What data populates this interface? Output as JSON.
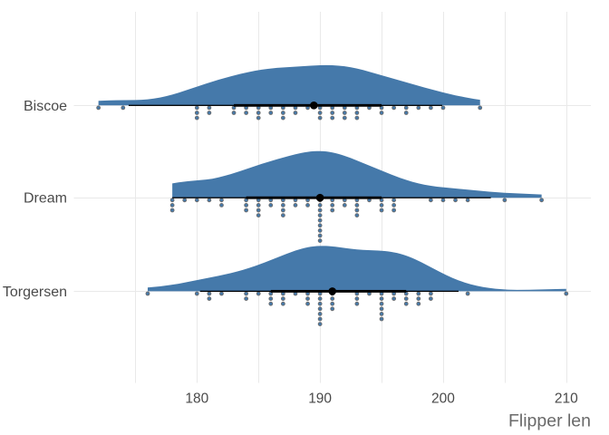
{
  "figure": {
    "xlabel": "Flipper len"
  },
  "chart_data": {
    "type": "raincloud",
    "orientation": "horizontal",
    "title": "",
    "xlabel": "Flipper len",
    "ylabel": "",
    "x_axis": {
      "range": [
        170,
        212
      ],
      "label_ticks": [
        180,
        190,
        200,
        210
      ],
      "gridlines": [
        175,
        180,
        185,
        190,
        195,
        200,
        205,
        210
      ]
    },
    "categories": [
      "Biscoe",
      "Dream",
      "Torgersen"
    ],
    "legend": "none",
    "grid": "on",
    "interval_widths": [
      0.66,
      0.95
    ],
    "groups": [
      {
        "name": "Biscoe",
        "n": 44,
        "median": 189.5,
        "q025": 174.45,
        "q17": 183.0,
        "q83": 195.0,
        "q975": 199.925,
        "values": {
          "172": 1,
          "174": 1,
          "180": 3,
          "181": 2,
          "183": 2,
          "184": 2,
          "185": 3,
          "186": 2,
          "187": 3,
          "188": 2,
          "189": 1,
          "190": 3,
          "191": 3,
          "192": 3,
          "193": 3,
          "194": 1,
          "195": 2,
          "196": 1,
          "197": 2,
          "198": 1,
          "199": 1,
          "200": 1,
          "203": 1
        },
        "density": [
          [
            172.0,
            0.0982
          ],
          [
            173.0,
            0.1081
          ],
          [
            175.0,
            0.1149
          ],
          [
            175.5,
            0.1205
          ],
          [
            176.0,
            0.1306
          ],
          [
            176.5,
            0.1465
          ],
          [
            177.0,
            0.1687
          ],
          [
            177.5,
            0.1973
          ],
          [
            178.0,
            0.232
          ],
          [
            178.5,
            0.2713
          ],
          [
            180.75,
            0.4681
          ],
          [
            181.75,
            0.5489
          ],
          [
            182.75,
            0.6223
          ],
          [
            183.5,
            0.6724
          ],
          [
            184.25,
            0.717
          ],
          [
            184.75,
            0.7428
          ],
          [
            185.25,
            0.7649
          ],
          [
            185.75,
            0.7832
          ],
          [
            186.5,
            0.8042
          ],
          [
            189.25,
            0.8515
          ],
          [
            190.0,
            0.86
          ],
          [
            190.5,
            0.8622
          ],
          [
            191.0,
            0.8597
          ],
          [
            191.5,
            0.8517
          ],
          [
            192.0,
            0.8372
          ],
          [
            192.5,
            0.8162
          ],
          [
            193.0,
            0.7891
          ],
          [
            193.5,
            0.7571
          ],
          [
            198.5,
            0.3816
          ],
          [
            200.0,
            0.2776
          ],
          [
            201.0,
            0.2157
          ],
          [
            201.75,
            0.1753
          ],
          [
            202.5,
            0.1403
          ],
          [
            203.0,
            0.1198
          ]
        ]
      },
      {
        "name": "Dream",
        "n": 56,
        "median": 190.0,
        "q025": 178.0,
        "q17": 184.0,
        "q83": 195.0,
        "q975": 203.875,
        "values": {
          "178": 3,
          "179": 1,
          "180": 1,
          "181": 1,
          "182": 2,
          "184": 3,
          "185": 4,
          "186": 2,
          "187": 4,
          "188": 2,
          "189": 2,
          "190": 9,
          "191": 3,
          "192": 2,
          "193": 4,
          "194": 1,
          "195": 3,
          "196": 3,
          "199": 1,
          "200": 1,
          "201": 1,
          "202": 1,
          "205": 1,
          "208": 1
        },
        "density": [
          [
            178.0,
            0.3062
          ],
          [
            178.5,
            0.3288
          ],
          [
            179.25,
            0.3538
          ],
          [
            180.75,
            0.389
          ],
          [
            181.25,
            0.4077
          ],
          [
            181.75,
            0.436
          ],
          [
            182.25,
            0.4691
          ],
          [
            182.75,
            0.5068
          ],
          [
            183.5,
            0.5701
          ],
          [
            185.25,
            0.7246
          ],
          [
            186.5,
            0.8248
          ],
          [
            187.5,
            0.8981
          ],
          [
            188.0,
            0.9313
          ],
          [
            188.5,
            0.9604
          ],
          [
            188.75,
            0.9727
          ],
          [
            189.0,
            0.9831
          ],
          [
            189.25,
            0.9913
          ],
          [
            189.5,
            0.997
          ],
          [
            189.75,
            0.9999
          ],
          [
            190.0,
            1.0
          ],
          [
            190.25,
            0.9971
          ],
          [
            190.5,
            0.9911
          ],
          [
            190.75,
            0.9821
          ],
          [
            191.0,
            0.9702
          ],
          [
            191.25,
            0.9555
          ],
          [
            191.5,
            0.9384
          ],
          [
            191.75,
            0.919
          ],
          [
            192.0,
            0.8977
          ],
          [
            192.5,
            0.8506
          ],
          [
            195.75,
            0.5023
          ],
          [
            196.5,
            0.4273
          ],
          [
            197.0,
            0.3818
          ],
          [
            197.5,
            0.3414
          ],
          [
            198.0,
            0.3068
          ],
          [
            198.5,
            0.2782
          ],
          [
            199.0,
            0.2553
          ],
          [
            199.5,
            0.2371
          ],
          [
            203.75,
            0.129
          ],
          [
            205.0,
            0.1063
          ],
          [
            208.0,
            0.0695
          ]
        ]
      },
      {
        "name": "Torgersen",
        "n": 51,
        "median": 191.0,
        "q025": 180.25,
        "q17": 186.0,
        "q83": 197.0,
        "q975": 201.25,
        "values": {
          "176": 1,
          "180": 1,
          "181": 2,
          "182": 1,
          "184": 2,
          "185": 1,
          "186": 3,
          "187": 3,
          "188": 1,
          "189": 3,
          "190": 7,
          "191": 4,
          "193": 3,
          "194": 1,
          "195": 6,
          "196": 2,
          "197": 3,
          "198": 3,
          "199": 2,
          "202": 1,
          "210": 1
        },
        "density": [
          [
            176.0,
            0.0796
          ],
          [
            177.0,
            0.1056
          ],
          [
            177.75,
            0.1308
          ],
          [
            178.5,
            0.1618
          ],
          [
            181.75,
            0.331
          ],
          [
            182.75,
            0.3896
          ],
          [
            183.25,
            0.4229
          ],
          [
            183.75,
            0.4597
          ],
          [
            184.25,
            0.5004
          ],
          [
            184.75,
            0.5448
          ],
          [
            185.5,
            0.6175
          ],
          [
            187.25,
            0.7998
          ],
          [
            187.75,
            0.8484
          ],
          [
            188.0,
            0.871
          ],
          [
            188.25,
            0.8918
          ],
          [
            188.5,
            0.9107
          ],
          [
            188.75,
            0.9275
          ],
          [
            189.0,
            0.9418
          ],
          [
            189.25,
            0.9535
          ],
          [
            189.5,
            0.9624
          ],
          [
            189.75,
            0.9685
          ],
          [
            190.0,
            0.9718
          ],
          [
            190.25,
            0.9724
          ],
          [
            190.5,
            0.9706
          ],
          [
            190.75,
            0.9666
          ],
          [
            191.25,
            0.9534
          ],
          [
            192.5,
            0.9108
          ],
          [
            193.0,
            0.8972
          ],
          [
            193.5,
            0.8876
          ],
          [
            194.75,
            0.8717
          ],
          [
            195.25,
            0.8617
          ],
          [
            195.5,
            0.8545
          ],
          [
            195.75,
            0.8452
          ],
          [
            196.0,
            0.8337
          ],
          [
            196.25,
            0.8198
          ],
          [
            196.5,
            0.8032
          ],
          [
            196.75,
            0.784
          ],
          [
            197.0,
            0.7623
          ],
          [
            197.25,
            0.738
          ],
          [
            197.5,
            0.7113
          ],
          [
            197.75,
            0.6825
          ],
          [
            198.25,
            0.6195
          ],
          [
            199.75,
            0.4131
          ],
          [
            200.25,
            0.3477
          ],
          [
            200.75,
            0.2877
          ],
          [
            201.0,
            0.2602
          ],
          [
            201.25,
            0.2344
          ],
          [
            201.5,
            0.2105
          ],
          [
            201.75,
            0.1884
          ],
          [
            202.0,
            0.1681
          ],
          [
            202.25,
            0.1496
          ],
          [
            202.75,
            0.1174
          ],
          [
            203.25,
            0.0915
          ],
          [
            203.75,
            0.0709
          ],
          [
            204.25,
            0.0549
          ],
          [
            204.75,
            0.0432
          ],
          [
            205.25,
            0.0351
          ],
          [
            206.0,
            0.0293
          ],
          [
            207.0,
            0.0309
          ],
          [
            209.5,
            0.0501
          ],
          [
            210.0,
            0.0509
          ]
        ]
      }
    ],
    "colors": {
      "slab_fill": "#4579aa",
      "dot_fill": "#4579aa",
      "dot_stroke": "#6e6e6e",
      "interval": "#000000",
      "median_point": "#000000",
      "gridline": "#e9e9e9",
      "axis_text": "#4a4a4a",
      "axis_title": "#6a6a6a",
      "background": "#ffffff"
    }
  }
}
